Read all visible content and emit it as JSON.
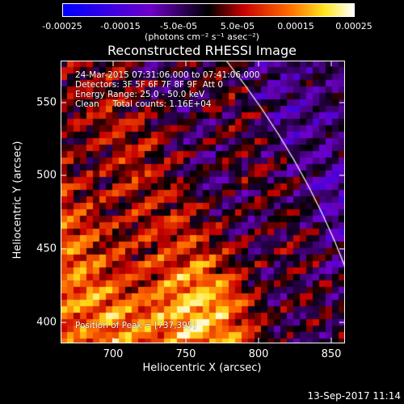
{
  "colorbar": {
    "ticks": [
      "-0.00025",
      "-0.00015",
      "-5.0e-05",
      "5.0e-05",
      "0.00015",
      "0.00025"
    ],
    "units": "(photons cm⁻² s⁻¹ asec⁻²)"
  },
  "title": "Reconstructed RHESSI Image",
  "info": {
    "line1": "24-Mar-2015 07:31:06.000 to 07:41:06.000",
    "line2": "Detectors: 3F 5F 6F 7F 8F 9F  Att 0",
    "line3": "Energy Range: 25.0 - 50.0 keV",
    "line4": "Clean     Total counts: 1.16E+04",
    "peak": "Position of Peak = [737,395]"
  },
  "axes": {
    "xlabel": "Heliocentric X (arcsec)",
    "ylabel": "Heliocentric Y (arcsec)",
    "xticks": [
      "700",
      "750",
      "800",
      "850"
    ],
    "yticks": [
      "550",
      "500",
      "450",
      "400"
    ]
  },
  "timestamp": "13-Sep-2017 11:14",
  "colors": {
    "background": "#000000",
    "limb": "#ffffff"
  }
}
